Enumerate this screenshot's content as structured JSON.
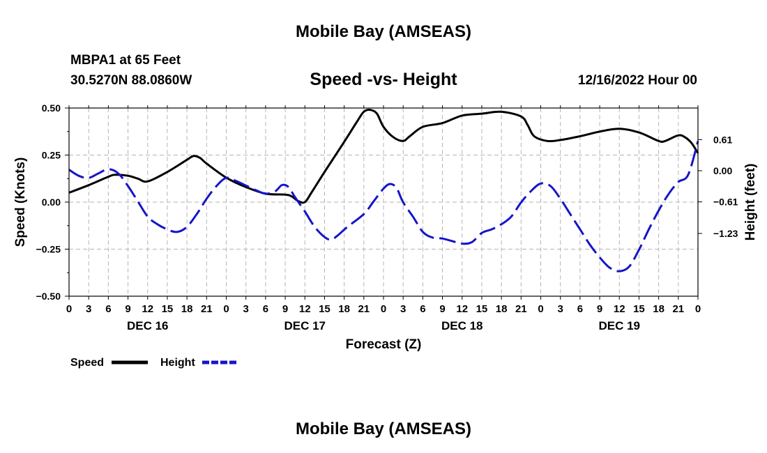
{
  "page": {
    "title": "Mobile Bay (AMSEAS)",
    "title_bottom": "Mobile Bay (AMSEAS)"
  },
  "header": {
    "station": "MBPA1 at 65 Feet",
    "coords": "30.5270N  88.0860W",
    "subtitle": "Speed -vs- Height",
    "date": "12/16/2022 Hour 00"
  },
  "legend": {
    "speed_label": "Speed",
    "height_label": "Height"
  },
  "colors": {
    "speed": "#000000",
    "height": "#1515c8",
    "grid": "#b4b4b4"
  },
  "chart_data": {
    "type": "line",
    "title": "Speed -vs- Height",
    "xlabel": "Forecast (Z)",
    "ylabel": "Speed (Knots)",
    "y2label": "Height (feet)",
    "x_range_hours": [
      0,
      96
    ],
    "x_ticks": [
      {
        "h": 0,
        "label": "0"
      },
      {
        "h": 3,
        "label": "3"
      },
      {
        "h": 6,
        "label": "6"
      },
      {
        "h": 9,
        "label": "9"
      },
      {
        "h": 12,
        "label": "12"
      },
      {
        "h": 15,
        "label": "15"
      },
      {
        "h": 18,
        "label": "18"
      },
      {
        "h": 21,
        "label": "21"
      },
      {
        "h": 24,
        "label": "0"
      },
      {
        "h": 27,
        "label": "3"
      },
      {
        "h": 30,
        "label": "6"
      },
      {
        "h": 33,
        "label": "9"
      },
      {
        "h": 36,
        "label": "12"
      },
      {
        "h": 39,
        "label": "15"
      },
      {
        "h": 42,
        "label": "18"
      },
      {
        "h": 45,
        "label": "21"
      },
      {
        "h": 48,
        "label": "0"
      },
      {
        "h": 51,
        "label": "3"
      },
      {
        "h": 54,
        "label": "6"
      },
      {
        "h": 57,
        "label": "9"
      },
      {
        "h": 60,
        "label": "12"
      },
      {
        "h": 63,
        "label": "15"
      },
      {
        "h": 66,
        "label": "18"
      },
      {
        "h": 69,
        "label": "21"
      },
      {
        "h": 72,
        "label": "0"
      },
      {
        "h": 75,
        "label": "3"
      },
      {
        "h": 78,
        "label": "6"
      },
      {
        "h": 81,
        "label": "9"
      },
      {
        "h": 84,
        "label": "12"
      },
      {
        "h": 87,
        "label": "15"
      },
      {
        "h": 90,
        "label": "18"
      },
      {
        "h": 93,
        "label": "21"
      },
      {
        "h": 96,
        "label": "0"
      }
    ],
    "day_labels": [
      {
        "h": 12,
        "label": "DEC 16"
      },
      {
        "h": 36,
        "label": "DEC 17"
      },
      {
        "h": 60,
        "label": "DEC 18"
      },
      {
        "h": 84,
        "label": "DEC 19"
      }
    ],
    "y_left": {
      "range": [
        -0.5,
        0.5
      ],
      "ticks": [
        {
          "v": 0.5,
          "label": "0.50"
        },
        {
          "v": 0.25,
          "label": "0.25"
        },
        {
          "v": 0.0,
          "label": "0.00"
        },
        {
          "v": -0.25,
          "label": "−0.25"
        },
        {
          "v": -0.5,
          "label": "−0.50"
        }
      ]
    },
    "y_right": {
      "range": [
        -2.46,
        1.23
      ],
      "ticks": [
        {
          "v": 0.61,
          "label": "0.61"
        },
        {
          "v": 0.0,
          "label": "0.00"
        },
        {
          "v": -0.61,
          "label": "−0.61"
        },
        {
          "v": -1.23,
          "label": "−1.23"
        }
      ]
    },
    "series": [
      {
        "name": "Speed",
        "axis": "left",
        "style": "solid",
        "points": [
          [
            0,
            0.05
          ],
          [
            3,
            0.09
          ],
          [
            6,
            0.135
          ],
          [
            7,
            0.145
          ],
          [
            9,
            0.14
          ],
          [
            10.5,
            0.125
          ],
          [
            12,
            0.11
          ],
          [
            15,
            0.16
          ],
          [
            18,
            0.225
          ],
          [
            19,
            0.245
          ],
          [
            20,
            0.235
          ],
          [
            21,
            0.205
          ],
          [
            24,
            0.13
          ],
          [
            27,
            0.08
          ],
          [
            30,
            0.045
          ],
          [
            33,
            0.04
          ],
          [
            34,
            0.03
          ],
          [
            35,
            0.005
          ],
          [
            36,
            0.0
          ],
          [
            37,
            0.05
          ],
          [
            39,
            0.16
          ],
          [
            42,
            0.32
          ],
          [
            44,
            0.43
          ],
          [
            45,
            0.48
          ],
          [
            46,
            0.49
          ],
          [
            47,
            0.47
          ],
          [
            48,
            0.4
          ],
          [
            49.5,
            0.345
          ],
          [
            51,
            0.325
          ],
          [
            52,
            0.35
          ],
          [
            54,
            0.4
          ],
          [
            57,
            0.42
          ],
          [
            60,
            0.46
          ],
          [
            63,
            0.47
          ],
          [
            66,
            0.48
          ],
          [
            69,
            0.455
          ],
          [
            70,
            0.41
          ],
          [
            71,
            0.35
          ],
          [
            73,
            0.325
          ],
          [
            75,
            0.33
          ],
          [
            78,
            0.35
          ],
          [
            81,
            0.375
          ],
          [
            84,
            0.39
          ],
          [
            87,
            0.37
          ],
          [
            90,
            0.325
          ],
          [
            91,
            0.325
          ],
          [
            93,
            0.355
          ],
          [
            94,
            0.345
          ],
          [
            95,
            0.315
          ],
          [
            96,
            0.26
          ]
        ]
      },
      {
        "name": "Height",
        "axis": "right",
        "style": "dashed",
        "points": [
          [
            0,
            0.02
          ],
          [
            1.5,
            -0.1
          ],
          [
            3,
            -0.14
          ],
          [
            4.5,
            -0.05
          ],
          [
            6,
            0.03
          ],
          [
            7.5,
            -0.05
          ],
          [
            9,
            -0.3
          ],
          [
            10.5,
            -0.6
          ],
          [
            12,
            -0.9
          ],
          [
            13.5,
            -1.05
          ],
          [
            15,
            -1.15
          ],
          [
            16.5,
            -1.2
          ],
          [
            18,
            -1.1
          ],
          [
            19.5,
            -0.85
          ],
          [
            21,
            -0.55
          ],
          [
            22.5,
            -0.3
          ],
          [
            24,
            -0.14
          ],
          [
            25.5,
            -0.2
          ],
          [
            27,
            -0.29
          ],
          [
            28.5,
            -0.38
          ],
          [
            30,
            -0.45
          ],
          [
            31.5,
            -0.4
          ],
          [
            32.5,
            -0.28
          ],
          [
            33.5,
            -0.32
          ],
          [
            34.5,
            -0.52
          ],
          [
            36,
            -0.8
          ],
          [
            37.5,
            -1.1
          ],
          [
            39,
            -1.3
          ],
          [
            40,
            -1.35
          ],
          [
            41,
            -1.27
          ],
          [
            42.5,
            -1.1
          ],
          [
            45,
            -0.85
          ],
          [
            46.5,
            -0.6
          ],
          [
            48,
            -0.35
          ],
          [
            49,
            -0.26
          ],
          [
            50,
            -0.34
          ],
          [
            51,
            -0.62
          ],
          [
            52.5,
            -0.9
          ],
          [
            54,
            -1.2
          ],
          [
            55.5,
            -1.31
          ],
          [
            57,
            -1.33
          ],
          [
            58.5,
            -1.38
          ],
          [
            60,
            -1.43
          ],
          [
            61.5,
            -1.4
          ],
          [
            63,
            -1.22
          ],
          [
            64.5,
            -1.15
          ],
          [
            66,
            -1.05
          ],
          [
            67.5,
            -0.9
          ],
          [
            69,
            -0.62
          ],
          [
            70.5,
            -0.4
          ],
          [
            72,
            -0.25
          ],
          [
            73.5,
            -0.3
          ],
          [
            75,
            -0.55
          ],
          [
            76.5,
            -0.85
          ],
          [
            78,
            -1.15
          ],
          [
            79.5,
            -1.45
          ],
          [
            81,
            -1.7
          ],
          [
            82.5,
            -1.9
          ],
          [
            84,
            -1.97
          ],
          [
            85.5,
            -1.88
          ],
          [
            87,
            -1.55
          ],
          [
            88.5,
            -1.15
          ],
          [
            90,
            -0.78
          ],
          [
            91.5,
            -0.46
          ],
          [
            93,
            -0.22
          ],
          [
            94.5,
            -0.08
          ],
          [
            96,
            0.58
          ]
        ]
      }
    ]
  }
}
